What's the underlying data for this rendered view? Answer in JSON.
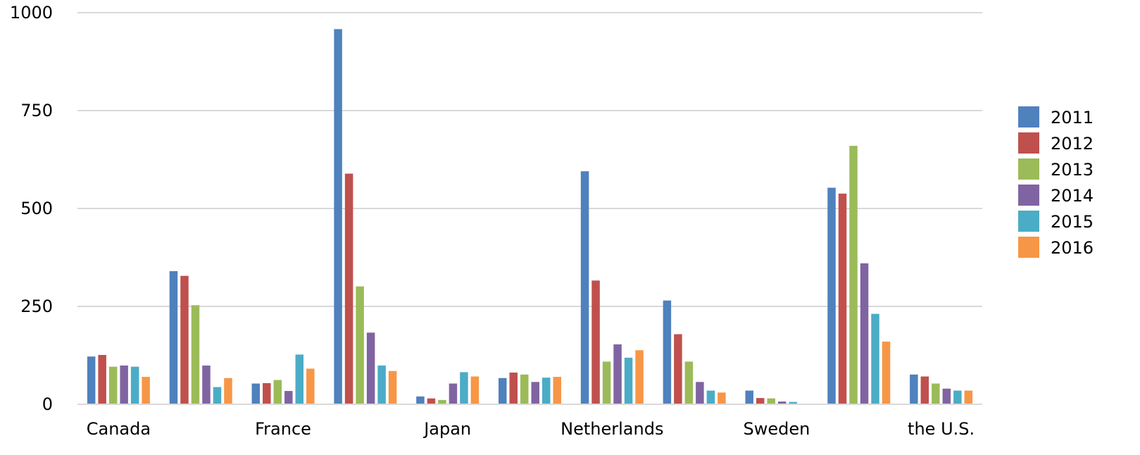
{
  "chart_data": {
    "type": "bar",
    "categories": [
      "Canada",
      "",
      "France",
      "",
      "Japan",
      "",
      "Netherlands",
      "",
      "Sweden",
      "",
      "the U.S."
    ],
    "series": [
      {
        "name": "2011",
        "color": "#4F81BD",
        "values": [
          122,
          340,
          53,
          958,
          20,
          67,
          595,
          265,
          35,
          553,
          76
        ]
      },
      {
        "name": "2012",
        "color": "#C0504D",
        "values": [
          126,
          328,
          54,
          589,
          15,
          81,
          316,
          179,
          16,
          538,
          71
        ]
      },
      {
        "name": "2013",
        "color": "#9BBB59",
        "values": [
          96,
          253,
          62,
          301,
          11,
          76,
          109,
          109,
          15,
          660,
          53
        ]
      },
      {
        "name": "2014",
        "color": "#8064A2",
        "values": [
          99,
          99,
          34,
          183,
          53,
          57,
          153,
          57,
          7,
          360,
          40
        ]
      },
      {
        "name": "2015",
        "color": "#4BACC6",
        "values": [
          96,
          44,
          127,
          99,
          82,
          68,
          119,
          35,
          6,
          231,
          35
        ]
      },
      {
        "name": "2016",
        "color": "#F79646",
        "values": [
          70,
          67,
          91,
          85,
          71,
          70,
          138,
          30,
          null,
          160,
          35
        ]
      }
    ],
    "ylim": [
      0,
      1000
    ],
    "yticks": [
      "0",
      "250",
      "500",
      "750",
      "1000"
    ],
    "ytick_values": [
      0,
      250,
      500,
      750,
      1000
    ],
    "grid": true,
    "legend_position": "right"
  }
}
